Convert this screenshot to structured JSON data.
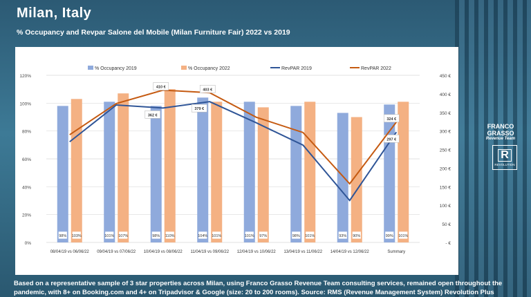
{
  "title": "Milan, Italy",
  "subtitle": "% Occupancy and Revpar Salone del Mobile (Milan Furniture Fair) 2022 vs 2019",
  "footnote": "Based on a representative sample of 3 star properties across Milan, using Franco Grasso Revenue Team consulting services, remained open throughout the pandemic, with 8+ on Booking.com and 4+ on Tripadvisor & Google (size: 20 to 200 rooms). Source: RMS (Revenue Management System) Revolution Plus",
  "logo": {
    "brand": "FRANCO GRASSO",
    "tagline": "Revenue Team",
    "product_letter": "R",
    "product": "REVOLUTION"
  },
  "chart_data": {
    "type": "bar+line",
    "categories": [
      "08/04/19 vs 06/06/22",
      "09/04/19 vs 07/06/22",
      "10/04/19 vs 08/06/22",
      "11/04/19 vs 09/06/22",
      "12/04/19 vs 10/06/22",
      "13/04/19 vs 11/06/22",
      "14/04/19 vs 12/06/22",
      "Summary"
    ],
    "bar_series": [
      {
        "name": "% Occupancy 2019",
        "color": "#8faadc",
        "values": [
          98,
          101,
          98,
          104,
          101,
          98,
          93,
          99
        ],
        "labels": [
          "98%",
          "101%",
          "98%",
          "104%",
          "101%",
          "98%",
          "93%",
          "99%"
        ]
      },
      {
        "name": "% Occupancy 2022",
        "color": "#f4b183",
        "values": [
          103,
          107,
          110,
          101,
          97,
          101,
          90,
          101
        ],
        "labels": [
          "103%",
          "107%",
          "110%",
          "101%",
          "97%",
          "101%",
          "90%",
          "101%"
        ]
      }
    ],
    "line_series": [
      {
        "name": "RevPAR 2019",
        "color": "#2f5597",
        "values": [
          271,
          370,
          362,
          379,
          322,
          262,
          113,
          297
        ],
        "labels": {
          "2": "362 €",
          "3": "379 €",
          "7": "297 €"
        }
      },
      {
        "name": "RevPAR 2022",
        "color": "#c55a11",
        "values": [
          290,
          374,
          410,
          403,
          337,
          296,
          158,
          324
        ],
        "labels": {
          "2": "410 €",
          "3": "403 €",
          "7": "324 €"
        }
      }
    ],
    "y_left": {
      "min": 0,
      "max": 120,
      "ticks": [
        "0%",
        "20%",
        "40%",
        "60%",
        "80%",
        "100%",
        "120%"
      ]
    },
    "y_right": {
      "min": 0,
      "max": 450,
      "ticks": [
        "- €",
        "50 €",
        "100 €",
        "150 €",
        "200 €",
        "250 €",
        "300 €",
        "350 €",
        "400 €",
        "450 €"
      ]
    },
    "grid": true,
    "legend": "top"
  }
}
